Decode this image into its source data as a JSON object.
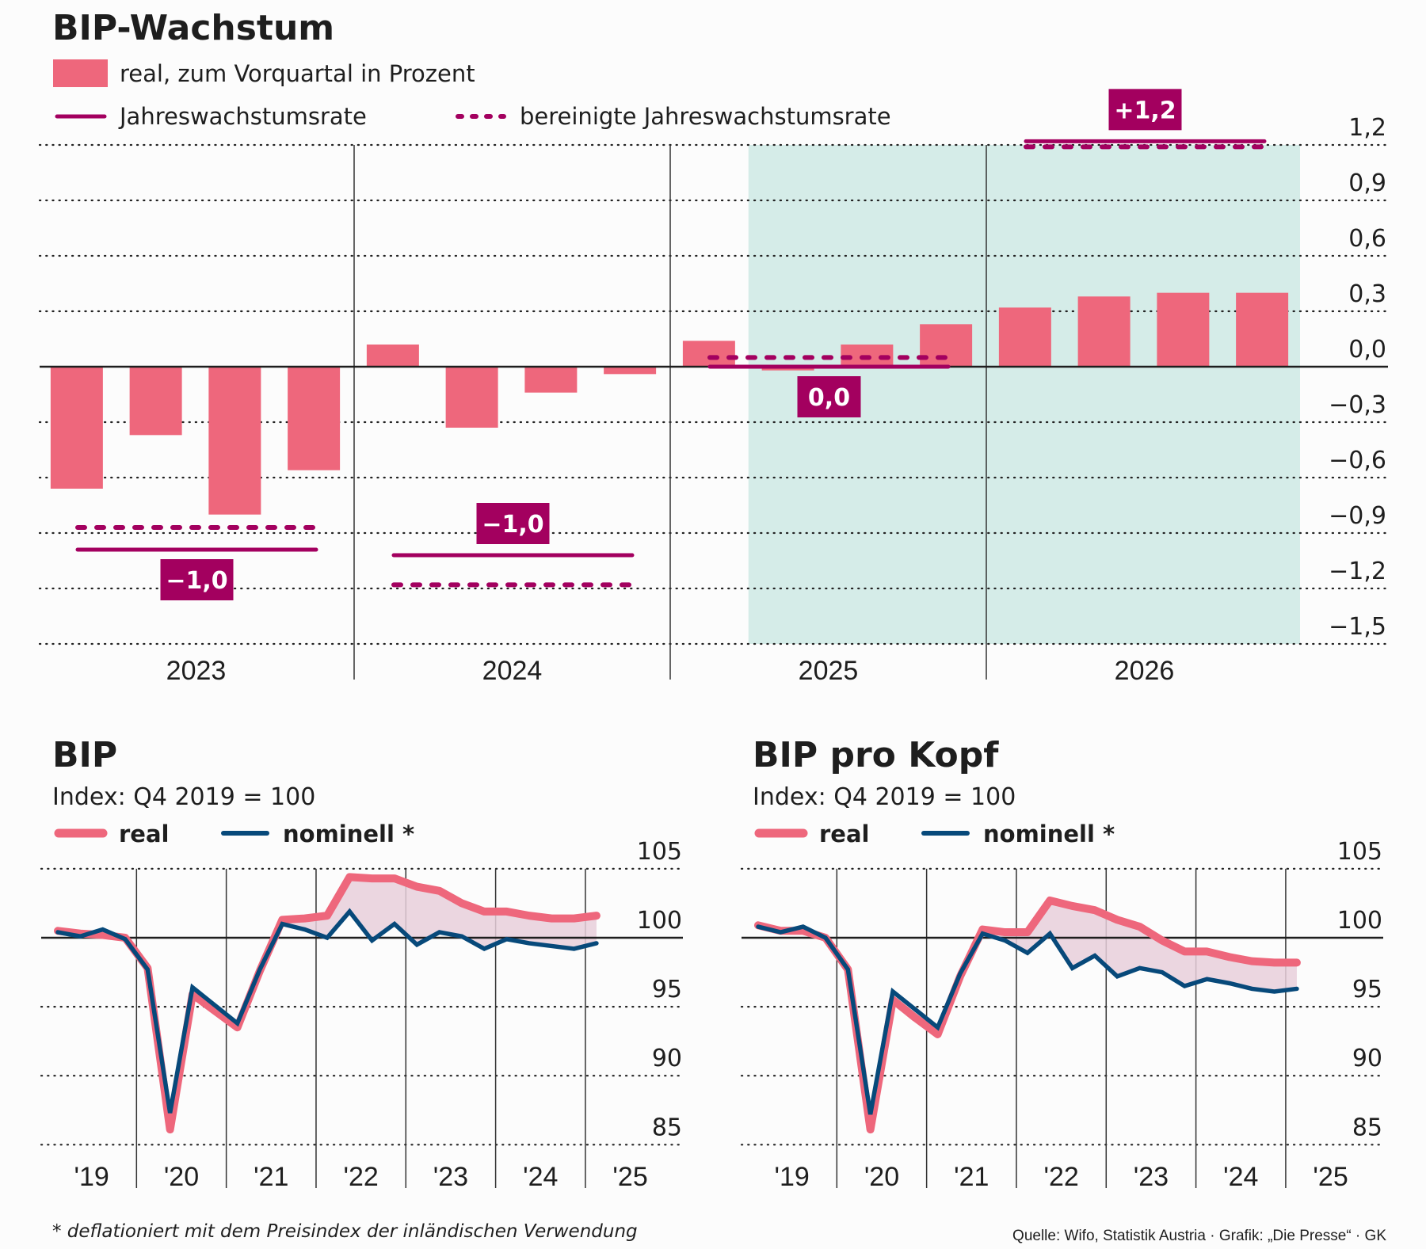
{
  "colors": {
    "bar": "#ee677c",
    "annual": "#a3005f",
    "forecast_shade": "#d5ece8",
    "real": "#ee677c",
    "nominal": "#07497a",
    "gap_fill": "#e7cfdb"
  },
  "chart_data": [
    {
      "type": "bar",
      "title": "BIP-Wachstum",
      "legend": {
        "bars": "real, zum Vorquartal in Prozent",
        "solid": "Jahreswachstumsrate",
        "dashed": "bereinigte Jahreswachstumsrate"
      },
      "ylim": [
        -1.5,
        1.2
      ],
      "yticks": [
        1.2,
        0.9,
        0.6,
        0.3,
        0.0,
        -0.3,
        -0.6,
        -0.9,
        -1.2,
        -1.5
      ],
      "ytick_labels": [
        "1,2",
        "0,9",
        "0,6",
        "0,3",
        "0,0",
        "−0,3",
        "−0,6",
        "−0,9",
        "−1,2",
        "−1,5"
      ],
      "grid": true,
      "years": [
        "2023",
        "2024",
        "2025",
        "2026"
      ],
      "quarters_per_year": 4,
      "forecast_start_index": 9,
      "values": [
        -0.66,
        -0.37,
        -0.8,
        -0.56,
        0.12,
        -0.33,
        -0.14,
        -0.04,
        0.14,
        -0.02,
        0.12,
        0.23,
        0.32,
        0.38,
        0.4,
        0.4
      ],
      "annual_rates": [
        {
          "year": "2023",
          "value": -0.99,
          "adjusted": -0.87,
          "label": "−1,0",
          "label_position": "below"
        },
        {
          "year": "2024",
          "value": -1.02,
          "adjusted": -1.18,
          "label": "−1,0",
          "label_position": "above"
        },
        {
          "year": "2025",
          "value": 0.0,
          "adjusted": 0.05,
          "label": "0,0",
          "label_position": "below"
        },
        {
          "year": "2026",
          "value": 1.22,
          "adjusted": 1.19,
          "label": "+1,2",
          "label_position": "above"
        }
      ]
    },
    {
      "type": "line",
      "title": "BIP",
      "subtitle": "Index: Q4 2019 = 100",
      "legend": {
        "real": "real",
        "nominal": "nominell *"
      },
      "ylim": [
        85,
        105
      ],
      "yticks": [
        105,
        100,
        95,
        90,
        85
      ],
      "ytick_labels": [
        "105",
        "100",
        "95",
        "90",
        "85"
      ],
      "baseline": 100,
      "xtick_labels": [
        "'19",
        "'20",
        "'21",
        "'22",
        "'23",
        "'24",
        "'25"
      ],
      "x": [
        "Q1 2019",
        "Q2 2019",
        "Q3 2019",
        "Q4 2019",
        "Q1 2020",
        "Q2 2020",
        "Q3 2020",
        "Q4 2020",
        "Q1 2021",
        "Q2 2021",
        "Q3 2021",
        "Q4 2021",
        "Q1 2022",
        "Q2 2022",
        "Q3 2022",
        "Q4 2022",
        "Q1 2023",
        "Q2 2023",
        "Q3 2023",
        "Q4 2023",
        "Q1 2024",
        "Q2 2024",
        "Q3 2024",
        "Q4 2024",
        "Q1 2025"
      ],
      "series": [
        {
          "name": "real",
          "values": [
            100.5,
            100.3,
            100.2,
            100.0,
            97.8,
            86.1,
            95.9,
            94.7,
            93.5,
            97.6,
            101.3,
            101.4,
            101.6,
            104.4,
            104.3,
            104.3,
            103.7,
            103.4,
            102.5,
            101.9,
            101.9,
            101.6,
            101.4,
            101.4,
            101.6
          ]
        },
        {
          "name": "nominell *",
          "values": [
            100.4,
            100.1,
            100.6,
            99.9,
            97.7,
            87.3,
            96.4,
            95.1,
            93.8,
            97.7,
            101.0,
            100.6,
            100.0,
            101.9,
            99.8,
            101.0,
            99.5,
            100.4,
            100.1,
            99.2,
            99.9,
            99.6,
            99.4,
            99.2,
            99.6
          ]
        }
      ]
    },
    {
      "type": "line",
      "title": "BIP pro Kopf",
      "subtitle": "Index: Q4 2019 = 100",
      "legend": {
        "real": "real",
        "nominal": "nominell *"
      },
      "ylim": [
        85,
        105
      ],
      "yticks": [
        105,
        100,
        95,
        90,
        85
      ],
      "ytick_labels": [
        "105",
        "100",
        "95",
        "90",
        "85"
      ],
      "baseline": 100,
      "xtick_labels": [
        "'19",
        "'20",
        "'21",
        "'22",
        "'23",
        "'24",
        "'25"
      ],
      "x": [
        "Q1 2019",
        "Q2 2019",
        "Q3 2019",
        "Q4 2019",
        "Q1 2020",
        "Q2 2020",
        "Q3 2020",
        "Q4 2020",
        "Q1 2021",
        "Q2 2021",
        "Q3 2021",
        "Q4 2021",
        "Q1 2022",
        "Q2 2022",
        "Q3 2022",
        "Q4 2022",
        "Q1 2023",
        "Q2 2023",
        "Q3 2023",
        "Q4 2023",
        "Q1 2024",
        "Q2 2024",
        "Q3 2024",
        "Q4 2024",
        "Q1 2025"
      ],
      "series": [
        {
          "name": "real",
          "values": [
            100.9,
            100.5,
            100.5,
            100.0,
            97.7,
            86.1,
            95.5,
            94.2,
            93.0,
            97.2,
            100.6,
            100.4,
            100.4,
            102.7,
            102.3,
            102.0,
            101.3,
            100.8,
            99.8,
            99.0,
            99.0,
            98.6,
            98.3,
            98.2,
            98.2
          ]
        },
        {
          "name": "nominell *",
          "values": [
            100.8,
            100.4,
            100.8,
            100.0,
            97.7,
            87.2,
            96.1,
            94.8,
            93.5,
            97.4,
            100.3,
            99.8,
            98.9,
            100.3,
            97.8,
            98.7,
            97.2,
            97.8,
            97.5,
            96.5,
            97.0,
            96.7,
            96.3,
            96.1,
            96.3
          ]
        }
      ]
    }
  ],
  "footnote": "* deflationiert mit dem Preisindex der inländischen Verwendung",
  "source": "Quelle: Wifo, Statistik Austria · Grafik: „Die Presse“ · GK"
}
